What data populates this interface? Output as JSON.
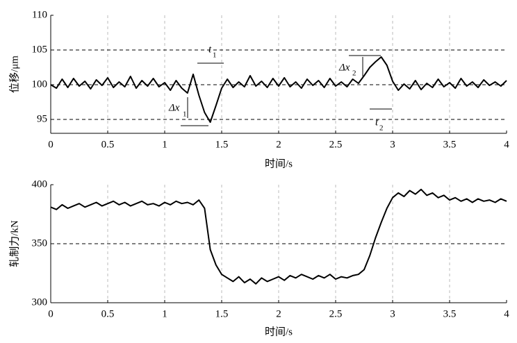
{
  "chart_data": [
    {
      "type": "line",
      "ylabel": "位移/μm",
      "xlabel": "时间/s",
      "color": "#000000",
      "grid": true,
      "x": [
        0,
        0.05,
        0.1,
        0.15,
        0.2,
        0.25,
        0.3,
        0.35,
        0.4,
        0.45,
        0.5,
        0.55,
        0.6,
        0.65,
        0.7,
        0.75,
        0.8,
        0.85,
        0.9,
        0.95,
        1,
        1.05,
        1.1,
        1.15,
        1.2,
        1.25,
        1.3,
        1.35,
        1.4,
        1.45,
        1.5,
        1.55,
        1.6,
        1.65,
        1.7,
        1.75,
        1.8,
        1.85,
        1.9,
        1.95,
        2,
        2.05,
        2.1,
        2.15,
        2.2,
        2.25,
        2.3,
        2.35,
        2.4,
        2.45,
        2.5,
        2.55,
        2.6,
        2.65,
        2.7,
        2.75,
        2.8,
        2.85,
        2.9,
        2.95,
        3,
        3.05,
        3.1,
        3.15,
        3.2,
        3.25,
        3.3,
        3.35,
        3.4,
        3.45,
        3.5,
        3.55,
        3.6,
        3.65,
        3.7,
        3.75,
        3.8,
        3.85,
        3.9,
        3.95,
        4
      ],
      "values": [
        100,
        99.5,
        100.8,
        99.6,
        100.9,
        99.8,
        100.5,
        99.4,
        100.7,
        99.9,
        101,
        99.6,
        100.4,
        99.7,
        101.2,
        99.5,
        100.6,
        99.8,
        100.9,
        99.7,
        100.3,
        99.2,
        100.6,
        99.5,
        98.8,
        101.5,
        98.5,
        96,
        94.6,
        97,
        99.5,
        100.8,
        99.6,
        100.4,
        99.7,
        101.3,
        99.8,
        100.5,
        99.6,
        100.9,
        99.8,
        101,
        99.7,
        100.4,
        99.5,
        100.8,
        99.9,
        100.6,
        99.6,
        100.9,
        99.8,
        100.4,
        99.7,
        100.8,
        100.2,
        101.3,
        102.5,
        103.3,
        104,
        102.8,
        100.5,
        99.2,
        100.1,
        99.4,
        100.6,
        99.3,
        100.2,
        99.6,
        100.8,
        99.7,
        100.3,
        99.5,
        100.9,
        99.8,
        100.4,
        99.6,
        100.7,
        99.9,
        100.4,
        99.8,
        100.6
      ],
      "xlim": [
        0,
        4
      ],
      "xticks": [
        0,
        0.5,
        1,
        1.5,
        2,
        2.5,
        3,
        3.5,
        4
      ],
      "ylim": [
        93,
        110
      ],
      "yticks": [
        95,
        100,
        105,
        110
      ],
      "annotations": [
        {
          "text": "Δx",
          "sub": "1"
        },
        {
          "text": "t",
          "sub": "1"
        },
        {
          "text": "Δx",
          "sub": "2"
        },
        {
          "text": "t",
          "sub": "2"
        }
      ]
    },
    {
      "type": "line",
      "ylabel": "轧制力/kN",
      "xlabel": "时间/s",
      "color": "#000000",
      "grid": true,
      "x": [
        0,
        0.05,
        0.1,
        0.15,
        0.2,
        0.25,
        0.3,
        0.35,
        0.4,
        0.45,
        0.5,
        0.55,
        0.6,
        0.65,
        0.7,
        0.75,
        0.8,
        0.85,
        0.9,
        0.95,
        1,
        1.05,
        1.1,
        1.15,
        1.2,
        1.25,
        1.3,
        1.35,
        1.4,
        1.45,
        1.5,
        1.55,
        1.6,
        1.65,
        1.7,
        1.75,
        1.8,
        1.85,
        1.9,
        1.95,
        2,
        2.05,
        2.1,
        2.15,
        2.2,
        2.25,
        2.3,
        2.35,
        2.4,
        2.45,
        2.5,
        2.55,
        2.6,
        2.65,
        2.7,
        2.75,
        2.8,
        2.85,
        2.9,
        2.95,
        3,
        3.05,
        3.1,
        3.15,
        3.2,
        3.25,
        3.3,
        3.35,
        3.4,
        3.45,
        3.5,
        3.55,
        3.6,
        3.65,
        3.7,
        3.75,
        3.8,
        3.85,
        3.9,
        3.95,
        4
      ],
      "values": [
        381,
        379,
        383,
        380,
        382,
        384,
        381,
        383,
        385,
        382,
        384,
        386,
        383,
        385,
        382,
        384,
        386,
        383,
        384,
        382,
        385,
        383,
        386,
        384,
        385,
        383,
        387,
        380,
        345,
        332,
        324,
        321,
        318,
        322,
        317,
        320,
        316,
        321,
        318,
        320,
        322,
        319,
        323,
        321,
        324,
        322,
        320,
        323,
        321,
        324,
        320,
        322,
        321,
        323,
        324,
        328,
        340,
        355,
        368,
        380,
        389,
        393,
        390,
        395,
        392,
        396,
        391,
        393,
        389,
        391,
        387,
        389,
        386,
        388,
        385,
        388,
        386,
        387,
        385,
        388,
        386
      ],
      "xlim": [
        0,
        4
      ],
      "xticks": [
        0,
        0.5,
        1,
        1.5,
        2,
        2.5,
        3,
        3.5,
        4
      ],
      "ylim": [
        300,
        400
      ],
      "yticks": [
        300,
        350,
        400
      ]
    }
  ]
}
